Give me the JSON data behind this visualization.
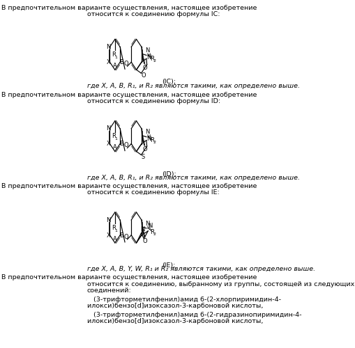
{
  "bg_color": "#ffffff",
  "fs": 6.8,
  "fs_italic": 6.5,
  "fs_label": 6.0,
  "fs_sub": 4.5,
  "lw": 0.85,
  "lw_thin": 0.55,
  "text_blocks": {
    "ic_line1": "В предпочтительном варианте осуществления, настоящее изобретение",
    "ic_line2": "относится к соединению формулы IC:",
    "ic_where": "где X, A, B, R₁, и R₂ являются такими, как определено выше.",
    "id_line1": "В предпочтительном варианте осуществления, настоящее изобретение",
    "id_line2": "относится к соединению формулы ID:",
    "id_where": "где X, A, B, R₁, и R₂ являются такими, как определено выше.",
    "ie_line1": "В предпочтительном варианте осуществления, настоящее изобретение",
    "ie_line2": "относится к соединению формулы IE:",
    "ie_where": "где X, A, B, Y, W, R₁ и R₂ являются такими, как определено выше.",
    "final_line1": "В предпочтительном варианте осуществления, настоящее изобретение",
    "final_line2": "относится к соединению, выбранному из группы, состоящей из следующих",
    "final_line3": "соединений:",
    "compound1a": "(3-трифторметилфенил)амид 6-(2-хлорпиримидин-4-",
    "compound1b": "илокси)бензо[d]изоксазол-3-карбоновой кислоты,",
    "compound2a": "(3-трифторметилфенил)амид 6-(2-гидразинопиримидин-4-",
    "compound2b": "илокси)бензо[d]изоксазол-3-карбоновой кислоты,"
  },
  "ic_label": "(IC);",
  "id_label": "(ID);",
  "ie_label": "(IE);"
}
